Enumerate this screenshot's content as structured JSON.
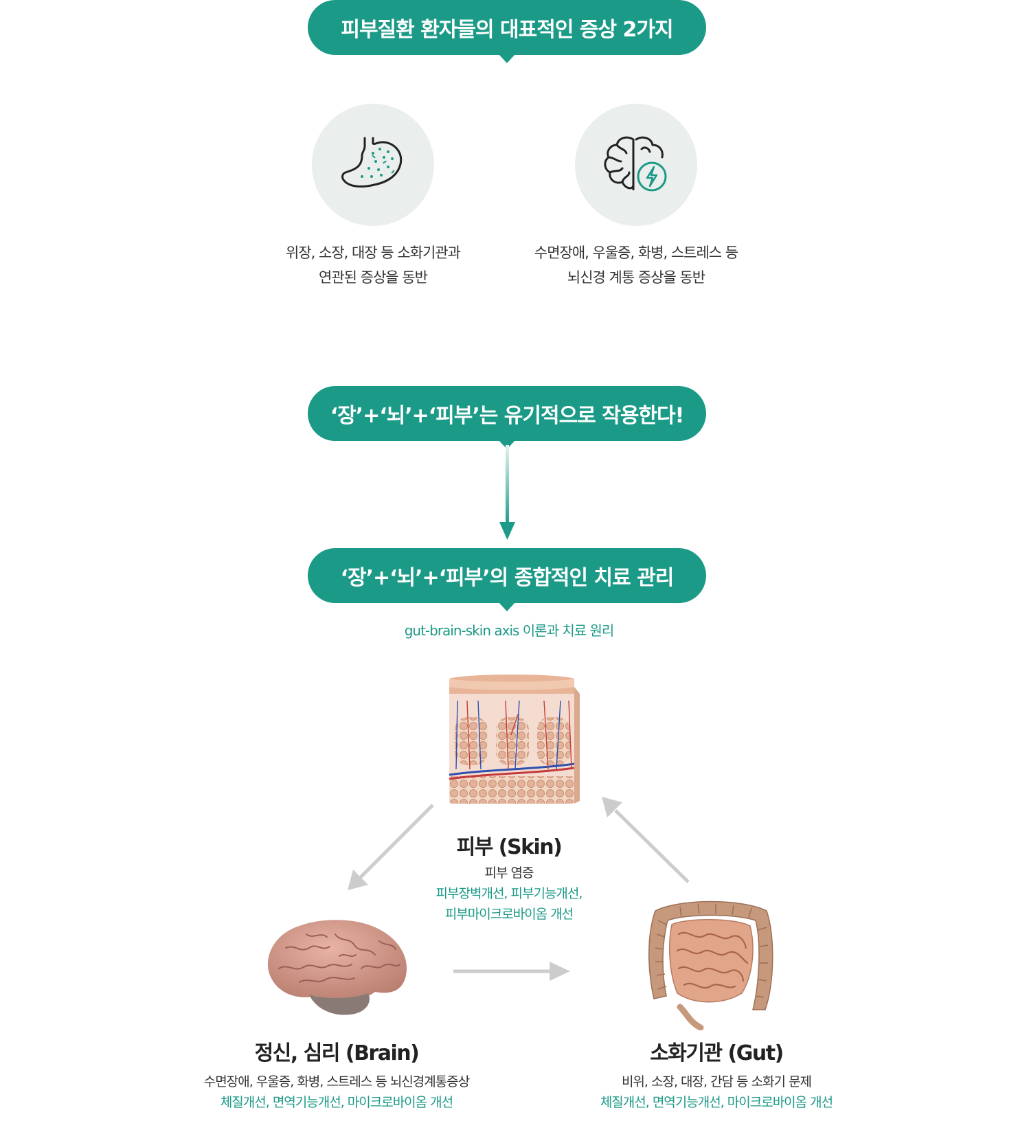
{
  "section1": {
    "heading": "피부질환 환자들의 대표적인 증상 2가지",
    "symptoms": [
      {
        "icon": "stomach-icon",
        "line1": "위장, 소장, 대장 등 소화기관과",
        "line2": "연관된 증상을 동반"
      },
      {
        "icon": "brain-bolt-icon",
        "line1": "수면장애, 우울증, 화병, 스트레스 등",
        "line2": "뇌신경 계통 증상을 동반"
      }
    ]
  },
  "section2": {
    "heading": "‘장’+‘뇌’+‘피부’는 유기적으로 작용한다!",
    "heading2": "‘장’+‘뇌’+‘피부’의 종합적인 치료 관리",
    "subtitle": "gut-brain-skin axis 이론과 치료 원리"
  },
  "nodes": {
    "skin": {
      "title": "피부 (Skin)",
      "line1": "피부 염증",
      "line2": "피부장벽개선, 피부기능개선,",
      "line3": "피부마이크로바이옴 개선"
    },
    "brain": {
      "title": "정신, 심리 (Brain)",
      "line1": "수면장애, 우울증, 화병, 스트레스 등 뇌신경계통증상",
      "line2": "체질개선, 면역기능개선, 마이크로바이옴 개선"
    },
    "gut": {
      "title": "소화기관 (Gut)",
      "line1": "비위, 소장, 대장, 간담 등 소화기 문제",
      "line2": "체질개선, 면역기능개선, 마이크로바이옴 개선"
    }
  },
  "colors": {
    "accent": "#1b9a87",
    "circle_bg": "#eaeeed",
    "arrow_gray": "#cccccc"
  }
}
